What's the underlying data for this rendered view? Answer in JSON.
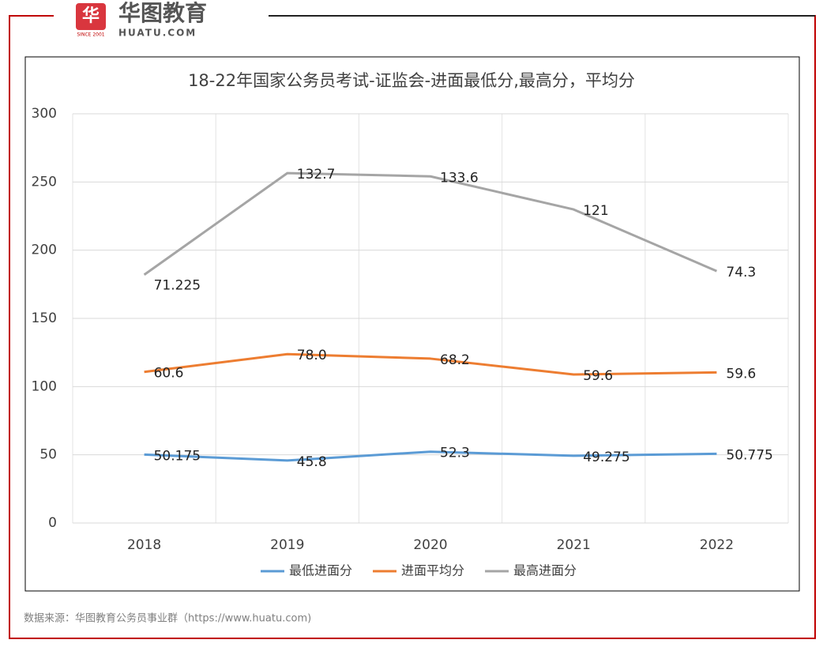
{
  "logo": {
    "name": "华图教育",
    "site": "HUATU.COM",
    "since": "SINCE 2001"
  },
  "chart_data": {
    "type": "stacked-line",
    "title": "18-22年国家公务员考试-证监会-进面最低分,最高分，平均分",
    "categories": [
      "2018",
      "2019",
      "2020",
      "2021",
      "2022"
    ],
    "series": [
      {
        "name": "最低进面分",
        "color": "#5b9bd5",
        "values": [
          50.175,
          45.8,
          52.3,
          49.275,
          50.775
        ]
      },
      {
        "name": "进面平均分",
        "color": "#ed7d31",
        "values": [
          60.6,
          78,
          68.2,
          59.6,
          59.6
        ],
        "value_labels": [
          "60.6",
          "78.0",
          "68.2",
          "59.6",
          "59.6"
        ]
      },
      {
        "name": "最高进面分",
        "color": "#a5a5a5",
        "values": [
          71.225,
          132.7,
          133.6,
          121,
          74.3
        ]
      }
    ],
    "ylim": [
      0,
      300
    ],
    "yticks": [
      0,
      50,
      100,
      150,
      200,
      250,
      300
    ],
    "grid": true,
    "legend": "bottom",
    "source": "数据来源：华图教育公务员事业群（https://www.huatu.com)"
  }
}
